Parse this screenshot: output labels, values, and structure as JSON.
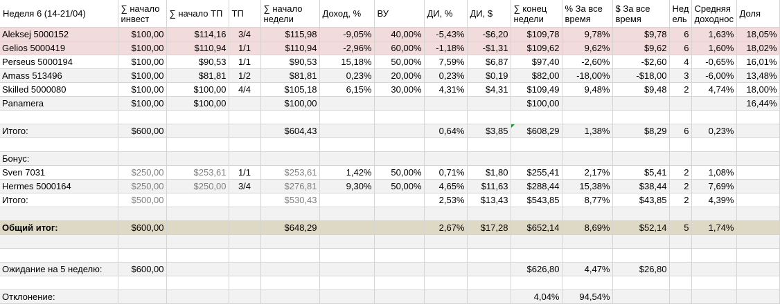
{
  "header": {
    "title": "Неделя 6 (14-21/04)",
    "cols": [
      "∑ начало инвест",
      "∑ начало ТП",
      "ТП",
      "∑ начало недели",
      "Доход, %",
      "ВУ",
      "ДИ, %",
      "ДИ, $",
      "∑ конец недели",
      "% За все время",
      "$ За все время",
      "Нед ель",
      "Средняя доходнос",
      "Доля"
    ]
  },
  "rows": [
    {
      "type": "hl",
      "cells": [
        "Aleksej 5000152",
        "$100,00",
        "$114,16",
        "3/4",
        "$115,98",
        "-9,05%",
        "40,00%",
        "-5,43%",
        "-$6,20",
        "$109,78",
        "9,78%",
        "$9,78",
        "6",
        "1,63%",
        "18,05%"
      ]
    },
    {
      "type": "hl",
      "cells": [
        "Gelios 5000419",
        "$100,00",
        "$110,94",
        "1/1",
        "$110,94",
        "-2,96%",
        "60,00%",
        "-1,18%",
        "-$1,31",
        "$109,62",
        "9,62%",
        "$9,62",
        "6",
        "1,60%",
        "18,02%"
      ]
    },
    {
      "type": "plain",
      "cells": [
        "Perseus 5000194",
        "$100,00",
        "$90,53",
        "1/1",
        "$90,53",
        "15,18%",
        "50,00%",
        "7,59%",
        "$6,87",
        "$97,40",
        "-2,60%",
        "-$2,60",
        "4",
        "-0,65%",
        "16,01%"
      ]
    },
    {
      "type": "alt",
      "cells": [
        "Amass 513496",
        "$100,00",
        "$81,81",
        "1/2",
        "$81,81",
        "0,23%",
        "20,00%",
        "0,23%",
        "$0,19",
        "$82,00",
        "-18,00%",
        "-$18,00",
        "3",
        "-6,00%",
        "13,48%"
      ]
    },
    {
      "type": "plain",
      "cells": [
        "Skilled 5000080",
        "$100,00",
        "$100,00",
        "4/4",
        "$105,18",
        "6,15%",
        "30,00%",
        "4,31%",
        "$4,31",
        "$109,49",
        "9,48%",
        "$9,48",
        "2",
        "4,74%",
        "18,00%"
      ]
    },
    {
      "type": "alt",
      "cells": [
        "Panamera",
        "$100,00",
        "$100,00",
        "",
        "$100,00",
        "",
        "",
        "",
        "",
        "$100,00",
        "",
        "",
        "",
        "",
        "16,44%"
      ]
    },
    {
      "type": "plain",
      "cells": [
        "",
        "",
        "",
        "",
        "",
        "",
        "",
        "",
        "",
        "",
        "",
        "",
        "",
        "",
        ""
      ]
    },
    {
      "type": "alt",
      "mark": 9,
      "cells": [
        "Итого:",
        "$600,00",
        "",
        "",
        "$604,43",
        "",
        "",
        "0,64%",
        "$3,85",
        "$608,29",
        "1,38%",
        "$8,29",
        "6",
        "0,23%",
        ""
      ]
    },
    {
      "type": "plain",
      "cells": [
        "",
        "",
        "",
        "",
        "",
        "",
        "",
        "",
        "",
        "",
        "",
        "",
        "",
        "",
        ""
      ]
    },
    {
      "type": "alt",
      "cells": [
        "Бонус:",
        "",
        "",
        "",
        "",
        "",
        "",
        "",
        "",
        "",
        "",
        "",
        "",
        "",
        ""
      ]
    },
    {
      "type": "plain",
      "gray": [
        1,
        2,
        4
      ],
      "cells": [
        "Sven 7031",
        "$250,00",
        "$253,61",
        "1/1",
        "$253,61",
        "1,42%",
        "50,00%",
        "0,71%",
        "$1,80",
        "$255,41",
        "2,17%",
        "$5,41",
        "2",
        "1,08%",
        ""
      ]
    },
    {
      "type": "alt",
      "gray": [
        1,
        2,
        4
      ],
      "cells": [
        "Hermes 5000164",
        "$250,00",
        "$250,00",
        "3/4",
        "$276,81",
        "9,30%",
        "50,00%",
        "4,65%",
        "$11,63",
        "$288,44",
        "15,38%",
        "$38,44",
        "2",
        "7,69%",
        ""
      ]
    },
    {
      "type": "plain",
      "gray": [
        1,
        4
      ],
      "cells": [
        "Итого:",
        "$500,00",
        "",
        "",
        "$530,43",
        "",
        "",
        "2,53%",
        "$13,43",
        "$543,85",
        "8,77%",
        "$43,85",
        "2",
        "4,39%",
        ""
      ]
    },
    {
      "type": "alt",
      "cells": [
        "",
        "",
        "",
        "",
        "",
        "",
        "",
        "",
        "",
        "",
        "",
        "",
        "",
        "",
        ""
      ]
    },
    {
      "type": "total",
      "cells": [
        "Общий итог:",
        "$600,00",
        "",
        "",
        "$648,29",
        "",
        "",
        "2,67%",
        "$17,28",
        "$652,14",
        "8,69%",
        "$52,14",
        "5",
        "1,74%",
        ""
      ]
    },
    {
      "type": "alt",
      "cells": [
        "",
        "",
        "",
        "",
        "",
        "",
        "",
        "",
        "",
        "",
        "",
        "",
        "",
        "",
        ""
      ]
    },
    {
      "type": "plain",
      "cells": [
        "",
        "",
        "",
        "",
        "",
        "",
        "",
        "",
        "",
        "",
        "",
        "",
        "",
        "",
        ""
      ]
    },
    {
      "type": "alt",
      "cells": [
        "Ожидание на 5 неделю:",
        "$600,00",
        "",
        "",
        "",
        "",
        "",
        "",
        "",
        "$626,80",
        "4,47%",
        "$26,80",
        "",
        "",
        ""
      ]
    },
    {
      "type": "plain",
      "cells": [
        "",
        "",
        "",
        "",
        "",
        "",
        "",
        "",
        "",
        "",
        "",
        "",
        "",
        "",
        ""
      ]
    },
    {
      "type": "alt",
      "cells": [
        "Отклонение:",
        "",
        "",
        "",
        "",
        "",
        "",
        "",
        "",
        "4,04%",
        "94,54%",
        "",
        "",
        "",
        ""
      ]
    }
  ]
}
